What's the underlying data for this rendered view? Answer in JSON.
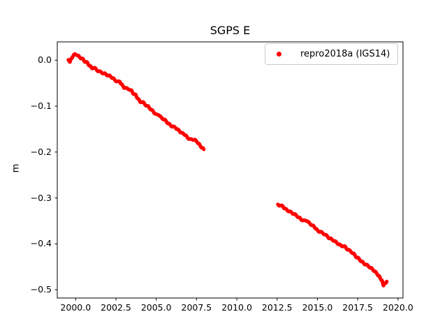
{
  "chart_data": {
    "type": "scatter",
    "title": "SGPS E",
    "xlabel": "",
    "ylabel": "m",
    "xlim": [
      1998.86,
      2020.31
    ],
    "ylim": [
      -0.518,
      0.04
    ],
    "grid": false,
    "legend_position": "upper right",
    "xticks": {
      "values": [
        2000.0,
        2002.5,
        2005.0,
        2007.5,
        2010.0,
        2012.5,
        2015.0,
        2017.5,
        2020.0
      ],
      "labels": [
        "2000.0",
        "2002.5",
        "2005.0",
        "2007.5",
        "2010.0",
        "2012.5",
        "2015.0",
        "2017.5",
        "2020.0"
      ]
    },
    "yticks": {
      "values": [
        0.0,
        -0.1,
        -0.2,
        -0.3,
        -0.4,
        -0.5
      ],
      "labels": [
        "0.0",
        "−0.1",
        "−0.2",
        "−0.3",
        "−0.4",
        "−0.5"
      ]
    },
    "series": [
      {
        "name": "repro2018a (IGS14)",
        "color": "#ff0000",
        "marker": "point",
        "segments": [
          [
            [
              1999.55,
              0.001
            ],
            [
              1999.65,
              -0.003
            ],
            [
              1999.8,
              0.008
            ],
            [
              1999.95,
              0.013
            ],
            [
              2000.1,
              0.012
            ],
            [
              2000.25,
              0.006
            ],
            [
              2000.4,
              0.004
            ],
            [
              2000.55,
              -0.002
            ],
            [
              2000.7,
              -0.005
            ],
            [
              2000.85,
              -0.011
            ],
            [
              2001.0,
              -0.017
            ],
            [
              2001.15,
              -0.016
            ],
            [
              2001.3,
              -0.021
            ],
            [
              2001.5,
              -0.025
            ],
            [
              2001.7,
              -0.028
            ],
            [
              2001.85,
              -0.03
            ],
            [
              2002.0,
              -0.033
            ],
            [
              2002.2,
              -0.036
            ],
            [
              2002.4,
              -0.042
            ],
            [
              2002.6,
              -0.047
            ],
            [
              2002.75,
              -0.047
            ],
            [
              2002.9,
              -0.055
            ],
            [
              2003.0,
              -0.059
            ],
            [
              2003.2,
              -0.062
            ],
            [
              2003.4,
              -0.064
            ],
            [
              2003.55,
              -0.071
            ],
            [
              2003.7,
              -0.075
            ],
            [
              2003.85,
              -0.083
            ],
            [
              2004.0,
              -0.09
            ],
            [
              2004.15,
              -0.091
            ],
            [
              2004.3,
              -0.096
            ],
            [
              2004.5,
              -0.101
            ],
            [
              2004.7,
              -0.108
            ],
            [
              2004.85,
              -0.113
            ],
            [
              2005.0,
              -0.119
            ],
            [
              2005.15,
              -0.118
            ],
            [
              2005.3,
              -0.125
            ],
            [
              2005.5,
              -0.129
            ],
            [
              2005.7,
              -0.136
            ],
            [
              2005.85,
              -0.141
            ],
            [
              2006.0,
              -0.144
            ],
            [
              2006.2,
              -0.147
            ],
            [
              2006.4,
              -0.153
            ],
            [
              2006.6,
              -0.159
            ],
            [
              2006.75,
              -0.161
            ],
            [
              2006.9,
              -0.167
            ],
            [
              2007.1,
              -0.173
            ],
            [
              2007.25,
              -0.172
            ],
            [
              2007.4,
              -0.174
            ],
            [
              2007.55,
              -0.178
            ],
            [
              2007.7,
              -0.185
            ],
            [
              2007.85,
              -0.191
            ],
            [
              2007.95,
              -0.194
            ]
          ],
          [
            [
              2012.55,
              -0.314
            ],
            [
              2012.7,
              -0.317
            ],
            [
              2012.85,
              -0.318
            ],
            [
              2013.0,
              -0.324
            ],
            [
              2013.2,
              -0.328
            ],
            [
              2013.4,
              -0.332
            ],
            [
              2013.6,
              -0.336
            ],
            [
              2013.8,
              -0.341
            ],
            [
              2014.0,
              -0.347
            ],
            [
              2014.2,
              -0.35
            ],
            [
              2014.35,
              -0.349
            ],
            [
              2014.5,
              -0.355
            ],
            [
              2014.7,
              -0.36
            ],
            [
              2014.9,
              -0.366
            ],
            [
              2015.0,
              -0.371
            ],
            [
              2015.2,
              -0.374
            ],
            [
              2015.4,
              -0.378
            ],
            [
              2015.6,
              -0.383
            ],
            [
              2015.75,
              -0.388
            ],
            [
              2015.9,
              -0.39
            ],
            [
              2016.1,
              -0.395
            ],
            [
              2016.3,
              -0.4
            ],
            [
              2016.5,
              -0.405
            ],
            [
              2016.65,
              -0.404
            ],
            [
              2016.8,
              -0.41
            ],
            [
              2017.0,
              -0.415
            ],
            [
              2017.2,
              -0.42
            ],
            [
              2017.4,
              -0.428
            ],
            [
              2017.55,
              -0.432
            ],
            [
              2017.7,
              -0.437
            ],
            [
              2017.9,
              -0.443
            ],
            [
              2018.1,
              -0.447
            ],
            [
              2018.3,
              -0.452
            ],
            [
              2018.5,
              -0.458
            ],
            [
              2018.7,
              -0.465
            ],
            [
              2018.85,
              -0.472
            ],
            [
              2019.0,
              -0.48
            ],
            [
              2019.1,
              -0.49
            ],
            [
              2019.2,
              -0.487
            ],
            [
              2019.3,
              -0.482
            ]
          ]
        ]
      }
    ]
  }
}
